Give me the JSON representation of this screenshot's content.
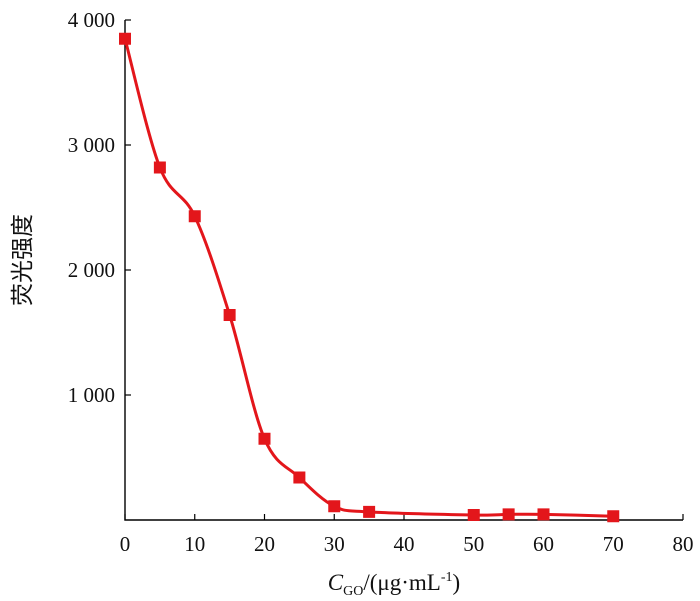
{
  "chart_data": {
    "type": "line",
    "title": "",
    "xlabel": "C",
    "xlabel_sub": "GO",
    "xlabel_unit": "/(μg·mL",
    "xlabel_sup": "-1",
    "xlabel_close": ")",
    "ylabel": "荧光强度",
    "xlim": [
      0,
      80
    ],
    "ylim": [
      0,
      4000
    ],
    "x_ticks": [
      0,
      10,
      20,
      30,
      40,
      50,
      60,
      70,
      80
    ],
    "x_tick_labels": [
      "0",
      "10",
      "20",
      "30",
      "40",
      "50",
      "60",
      "70",
      "80"
    ],
    "y_ticks": [
      1000,
      2000,
      3000,
      4000
    ],
    "y_tick_labels": [
      "1 000",
      "2 000",
      "3 000",
      "4 000"
    ],
    "grid": false,
    "legend": "none",
    "series": [
      {
        "color": "#e3161b",
        "marker": "square",
        "x": [
          0,
          5,
          10,
          15,
          20,
          25,
          30,
          35,
          50,
          55,
          60,
          70
        ],
        "y": [
          3850,
          2820,
          2430,
          1640,
          650,
          340,
          110,
          65,
          40,
          45,
          45,
          30
        ]
      }
    ]
  }
}
